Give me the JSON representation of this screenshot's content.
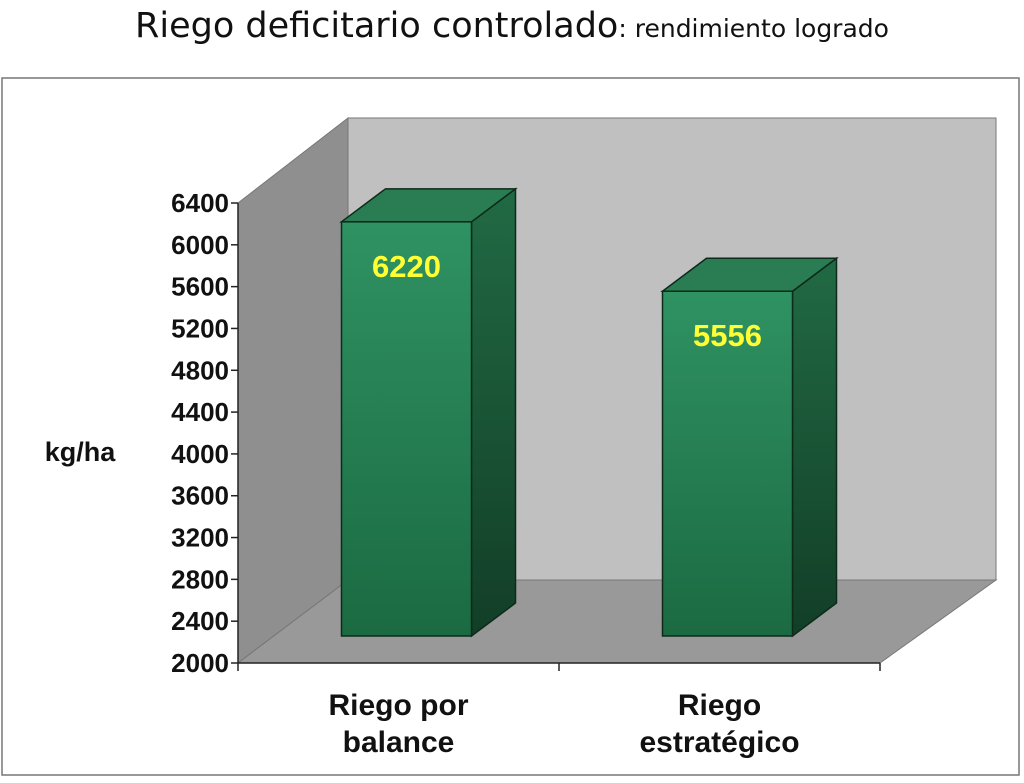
{
  "chart_data": {
    "type": "bar",
    "title": "Riego deficitario controlado",
    "subtitle": "rendimiento logrado",
    "title_separator": ": ",
    "ylabel": "kg/ha",
    "xlabel": "",
    "ylim": [
      2000,
      6400
    ],
    "ytick_step": 400,
    "categories": [
      [
        "Riego por",
        "balance"
      ],
      [
        "Riego",
        "estratégico"
      ]
    ],
    "values": [
      6220,
      5556
    ],
    "data_labels": [
      "6220",
      "5556"
    ],
    "legend": "none",
    "grid": false,
    "colors": {
      "bar_front": "#2f9262",
      "bar_front_dark": "#1b6a42",
      "bar_side": "#1d5a3a",
      "bar_top": "#2a7d52",
      "back_wall": "#c0c0c0",
      "side_wall": "#8f8f8f",
      "floor": "#999999",
      "data_label": "#ffff33"
    }
  }
}
